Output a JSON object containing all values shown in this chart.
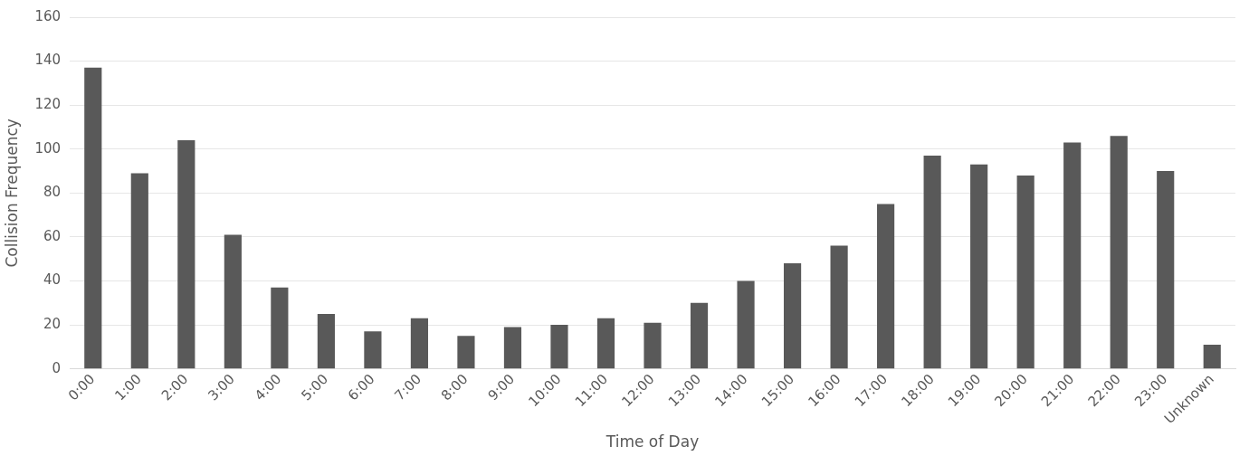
{
  "chart_data": {
    "type": "bar",
    "xlabel": "Time of Day",
    "ylabel": "Collision Frequency",
    "categories": [
      "0:00",
      "1:00",
      "2:00",
      "3:00",
      "4:00",
      "5:00",
      "6:00",
      "7:00",
      "8:00",
      "9:00",
      "10:00",
      "11:00",
      "12:00",
      "13:00",
      "14:00",
      "15:00",
      "16:00",
      "17:00",
      "18:00",
      "19:00",
      "20:00",
      "21:00",
      "22:00",
      "23:00",
      "Unknown"
    ],
    "values": [
      137,
      89,
      104,
      61,
      37,
      25,
      17,
      23,
      15,
      19,
      20,
      23,
      21,
      30,
      40,
      48,
      56,
      75,
      97,
      93,
      88,
      103,
      106,
      90,
      11
    ],
    "color": "#595959",
    "ylim": [
      0,
      160
    ],
    "yticks": [
      0,
      20,
      40,
      60,
      80,
      100,
      120,
      140,
      160
    ],
    "grid": "y",
    "legend": false
  }
}
